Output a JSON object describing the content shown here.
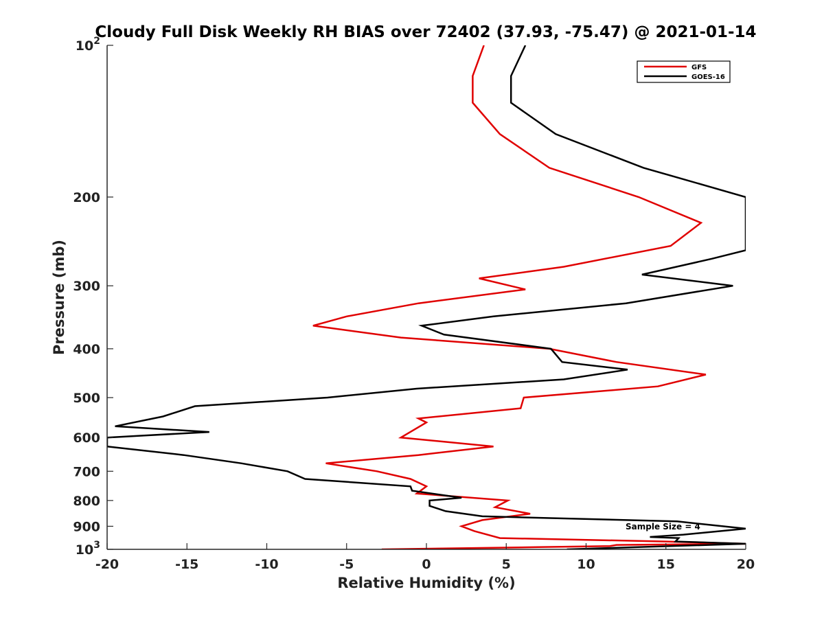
{
  "chart_data": {
    "type": "line",
    "title": "Cloudy Full Disk Weekly RH BIAS over 72402 (37.93, -75.47) @ 2021-01-14",
    "xlabel": "Relative Humidity (%)",
    "ylabel": "Pressure (mb)",
    "xlim": [
      -20,
      20
    ],
    "ylim": [
      100,
      1000
    ],
    "y_scale": "log",
    "y_reversed": true,
    "grid": false,
    "legend_position": "top-right",
    "x_ticks": [
      "-20",
      "-15",
      "-10",
      "-5",
      "0",
      "5",
      "10",
      "15",
      "20"
    ],
    "y_ticks": [
      {
        "value": 100,
        "base": "10",
        "exp": "2"
      },
      {
        "value": 200,
        "label": "200"
      },
      {
        "value": 300,
        "label": "300"
      },
      {
        "value": 400,
        "label": "400"
      },
      {
        "value": 500,
        "label": "500"
      },
      {
        "value": 600,
        "label": "600"
      },
      {
        "value": 700,
        "label": "700"
      },
      {
        "value": 800,
        "label": "800"
      },
      {
        "value": 900,
        "label": "900"
      },
      {
        "value": 1000,
        "base": "10",
        "exp": "3"
      }
    ],
    "annotation": "Sample Size = 4",
    "series": [
      {
        "name": "GFS",
        "color": "#e00000",
        "points": [
          [
            3.6,
            100
          ],
          [
            2.9,
            115
          ],
          [
            2.9,
            130
          ],
          [
            4.6,
            150
          ],
          [
            7.7,
            175
          ],
          [
            13.3,
            200
          ],
          [
            17.2,
            225
          ],
          [
            15.3,
            250
          ],
          [
            8.6,
            275
          ],
          [
            3.3,
            290
          ],
          [
            6.2,
            305
          ],
          [
            -0.5,
            325
          ],
          [
            -5.0,
            345
          ],
          [
            -7.1,
            360
          ],
          [
            -1.6,
            380
          ],
          [
            7.7,
            400
          ],
          [
            11.9,
            425
          ],
          [
            17.5,
            450
          ],
          [
            14.5,
            475
          ],
          [
            6.1,
            500
          ],
          [
            5.9,
            525
          ],
          [
            -0.5,
            550
          ],
          [
            0.0,
            560
          ],
          [
            -1.6,
            600
          ],
          [
            4.2,
            625
          ],
          [
            -0.5,
            650
          ],
          [
            -6.3,
            675
          ],
          [
            -3.1,
            700
          ],
          [
            -1.0,
            725
          ],
          [
            0.0,
            750
          ],
          [
            -0.6,
            775
          ],
          [
            5.1,
            800
          ],
          [
            4.3,
            825
          ],
          [
            6.5,
            850
          ],
          [
            3.5,
            875
          ],
          [
            2.2,
            900
          ],
          [
            3.0,
            920
          ],
          [
            4.6,
            950
          ],
          [
            15.0,
            965
          ],
          [
            20.0,
            975
          ],
          [
            11.9,
            980
          ],
          [
            11.5,
            985
          ],
          [
            7.0,
            990
          ],
          [
            -2.8,
            1000
          ]
        ]
      },
      {
        "name": "GOES-16",
        "color": "#000000",
        "points": [
          [
            6.2,
            100
          ],
          [
            5.3,
            115
          ],
          [
            5.3,
            130
          ],
          [
            8.1,
            150
          ],
          [
            13.6,
            175
          ],
          [
            20.0,
            200
          ],
          [
            20.0,
            255
          ],
          [
            17.9,
            265
          ],
          [
            13.5,
            285
          ],
          [
            19.2,
            300
          ],
          [
            12.5,
            325
          ],
          [
            4.2,
            345
          ],
          [
            -0.3,
            360
          ],
          [
            1.1,
            375
          ],
          [
            7.8,
            400
          ],
          [
            8.5,
            425
          ],
          [
            12.6,
            440
          ],
          [
            8.6,
            460
          ],
          [
            -0.6,
            480
          ],
          [
            -6.2,
            500
          ],
          [
            -14.5,
            520
          ],
          [
            -16.5,
            545
          ],
          [
            -19.5,
            570
          ],
          [
            -13.6,
            585
          ],
          [
            -20.0,
            600
          ],
          [
            -20.0,
            625
          ],
          [
            -15.2,
            650
          ],
          [
            -11.6,
            675
          ],
          [
            -8.7,
            700
          ],
          [
            -7.6,
            725
          ],
          [
            -1.0,
            750
          ],
          [
            -0.9,
            765
          ],
          [
            2.2,
            790
          ],
          [
            0.2,
            800
          ],
          [
            0.2,
            820
          ],
          [
            1.2,
            840
          ],
          [
            3.5,
            860
          ],
          [
            15.7,
            880
          ],
          [
            20.0,
            910
          ],
          [
            16.1,
            935
          ],
          [
            14.0,
            945
          ],
          [
            15.8,
            950
          ],
          [
            15.6,
            965
          ],
          [
            20.0,
            975
          ],
          [
            8.8,
            1000
          ]
        ]
      }
    ]
  }
}
